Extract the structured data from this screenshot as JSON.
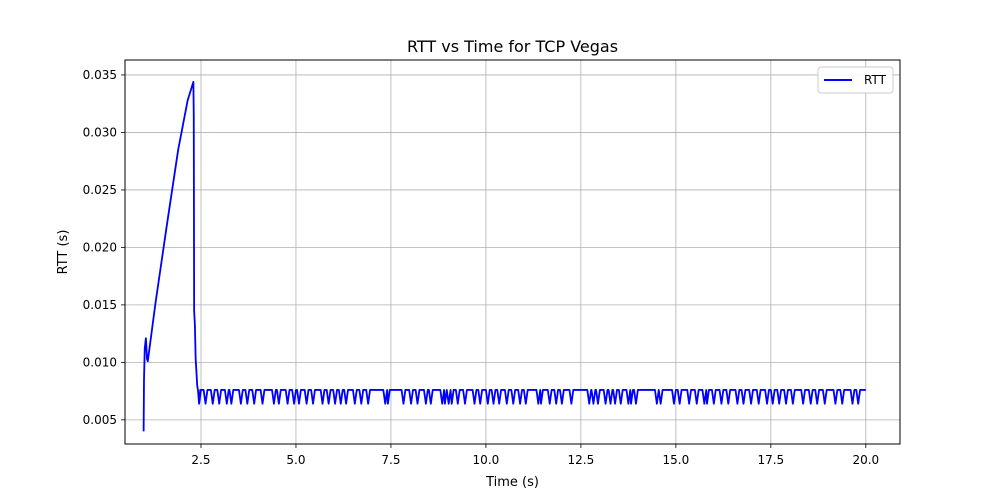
{
  "chart_data": {
    "type": "line",
    "title": "RTT vs Time for TCP Vegas",
    "xlabel": "Time (s)",
    "ylabel": "RTT (s)",
    "xlim": [
      0.5,
      20.9
    ],
    "ylim": [
      0.0029,
      0.0363
    ],
    "xticks": [
      2.5,
      5.0,
      7.5,
      10.0,
      12.5,
      15.0,
      17.5,
      20.0
    ],
    "xtick_labels": [
      "2.5",
      "5.0",
      "7.5",
      "10.0",
      "12.5",
      "15.0",
      "17.5",
      "20.0"
    ],
    "yticks": [
      0.005,
      0.01,
      0.015,
      0.02,
      0.025,
      0.03,
      0.035
    ],
    "ytick_labels": [
      "0.005",
      "0.010",
      "0.015",
      "0.020",
      "0.025",
      "0.030",
      "0.035"
    ],
    "grid": true,
    "legend_position": "top-right",
    "series": [
      {
        "name": "RTT",
        "color": "#0000ff",
        "baseline": 0.0076,
        "dip_value": 0.0064,
        "points": [
          [
            0.99,
            0.004
          ],
          [
            1.0,
            0.0085
          ],
          [
            1.02,
            0.0112
          ],
          [
            1.05,
            0.0121
          ],
          [
            1.08,
            0.0103
          ],
          [
            1.1,
            0.0101
          ],
          [
            1.3,
            0.0151
          ],
          [
            1.6,
            0.0219
          ],
          [
            1.9,
            0.0285
          ],
          [
            2.15,
            0.0328
          ],
          [
            2.3,
            0.0344
          ],
          [
            2.31,
            0.0315
          ],
          [
            2.32,
            0.0145
          ],
          [
            2.34,
            0.0132
          ],
          [
            2.36,
            0.0103
          ],
          [
            2.38,
            0.0092
          ],
          [
            2.4,
            0.008
          ],
          [
            2.42,
            0.0076
          ],
          [
            2.45,
            0.0064
          ],
          [
            2.48,
            0.0076
          ]
        ],
        "dips": [
          2.45,
          2.62,
          2.81,
          2.98,
          3.18,
          3.3,
          3.55,
          3.72,
          3.9,
          4.12,
          4.42,
          4.55,
          4.78,
          4.95,
          5.08,
          5.28,
          5.45,
          5.7,
          5.86,
          6.03,
          6.18,
          6.32,
          6.55,
          6.72,
          6.9,
          7.35,
          7.42,
          7.83,
          8.03,
          8.2,
          8.42,
          8.55,
          8.85,
          8.92,
          9.02,
          9.1,
          9.26,
          9.45,
          9.7,
          9.85,
          10.05,
          10.2,
          10.35,
          10.55,
          10.72,
          10.9,
          11.05,
          11.38,
          11.45,
          11.68,
          11.85,
          12.0,
          12.25,
          12.72,
          12.83,
          12.95,
          13.15,
          13.28,
          13.4,
          13.55,
          13.75,
          13.82,
          13.95,
          14.5,
          14.6,
          14.95,
          15.1,
          15.35,
          15.55,
          15.75,
          15.82,
          16.0,
          16.2,
          16.38,
          16.62,
          16.78,
          16.98,
          17.18,
          17.4,
          17.55,
          17.72,
          17.9,
          18.08,
          18.35,
          18.55,
          18.72,
          18.92,
          19.2,
          19.38,
          19.65,
          19.8
        ],
        "end_x": 20.0
      }
    ]
  }
}
